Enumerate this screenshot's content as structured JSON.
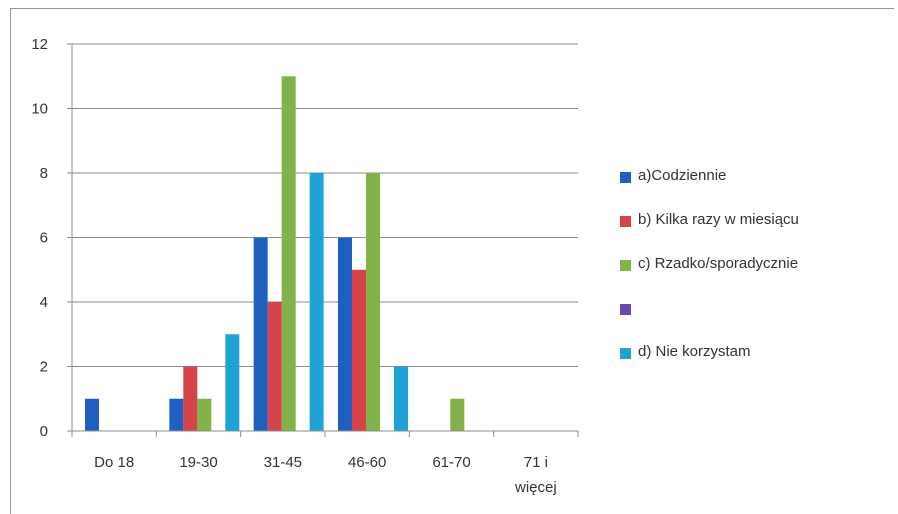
{
  "chart_data": {
    "type": "bar",
    "categories": [
      "Do 18",
      "19-30",
      "31-45",
      "46-60",
      "61-70",
      "71 i więcej"
    ],
    "category_lines": [
      [
        "Do 18"
      ],
      [
        "19-30"
      ],
      [
        "31-45"
      ],
      [
        "46-60"
      ],
      [
        "61-70"
      ],
      [
        "71 i",
        "więcej"
      ]
    ],
    "series": [
      {
        "name": "a)Codziennie",
        "color": "#1f5fbf",
        "values": [
          1,
          1,
          6,
          6,
          0,
          0
        ]
      },
      {
        "name": "b) Kilka razy w miesiącu",
        "color": "#d6434b",
        "values": [
          0,
          2,
          4,
          5,
          0,
          0
        ]
      },
      {
        "name": "c) Rzadko/sporadycznie",
        "color": "#82b24a",
        "values": [
          0,
          1,
          11,
          8,
          1,
          0
        ]
      },
      {
        "name": "",
        "color": "#6a4aa8",
        "values": [
          0,
          0,
          0,
          0,
          0,
          0
        ]
      },
      {
        "name": "d) Nie korzystam",
        "color": "#1fa3d6",
        "values": [
          0,
          3,
          8,
          2,
          0,
          0
        ]
      }
    ],
    "ylim": [
      0,
      12
    ],
    "yticks": [
      0,
      2,
      4,
      6,
      8,
      10,
      12
    ],
    "grid": true,
    "legend_position": "right"
  }
}
